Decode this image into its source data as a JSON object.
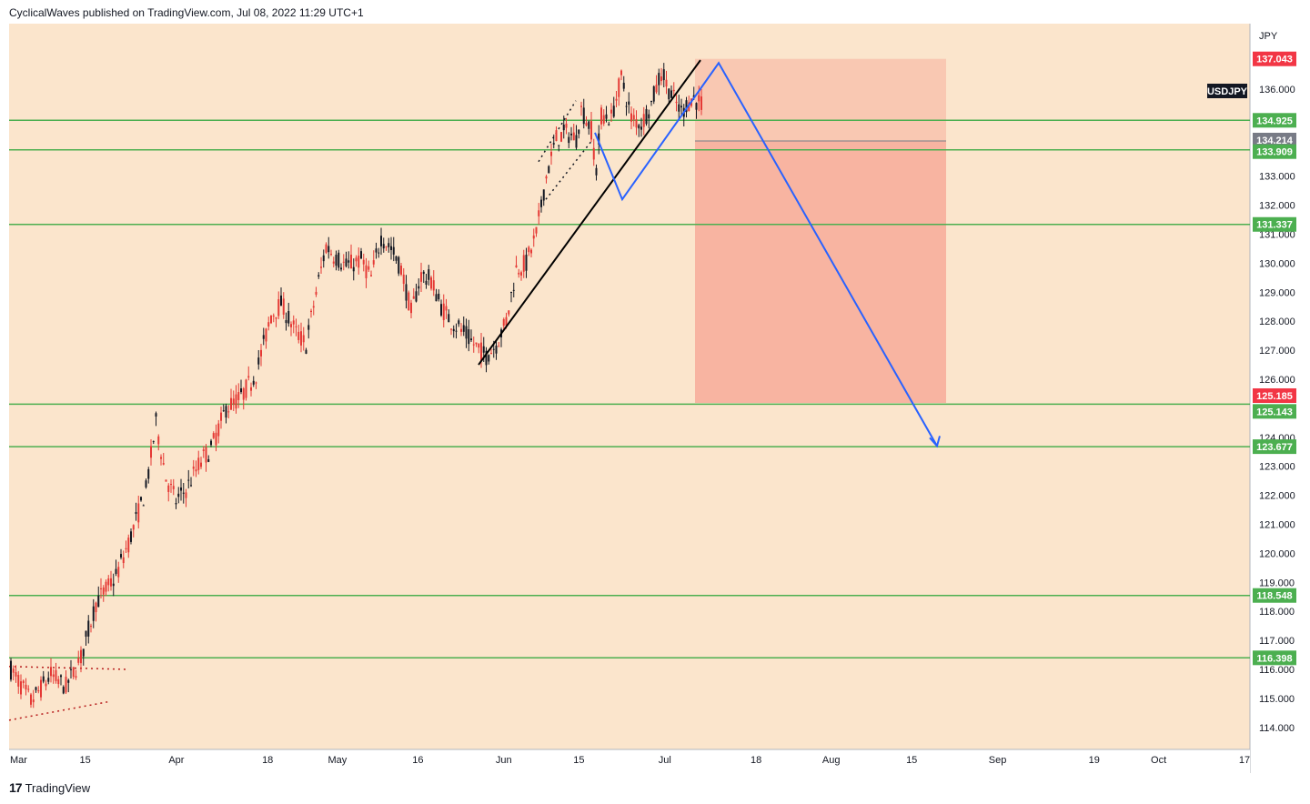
{
  "header": {
    "text": "CyclicalWaves published on TradingView.com, Jul 08, 2022 11:29 UTC+1"
  },
  "footer": {
    "logo": "17",
    "brand": "TradingView"
  },
  "colors": {
    "background": "#fbe5cc",
    "hline": "#4caf50",
    "candle_up": "#131722",
    "candle_down": "#e53935",
    "trend": "#000000",
    "wave": "#2962ff",
    "target_box": "#f7a393",
    "label_red": "#f23645",
    "label_green": "#4caf50",
    "label_grey": "#787b86"
  },
  "chart_data": {
    "type": "candlestick",
    "symbol": "USDJPY",
    "currency": "JPY",
    "ylim": [
      113.4,
      138.2
    ],
    "y_ticks": [
      "114.000",
      "115.000",
      "116.000",
      "117.000",
      "118.000",
      "119.000",
      "120.000",
      "121.000",
      "122.000",
      "123.000",
      "124.000",
      "125.000",
      "126.000",
      "127.000",
      "128.000",
      "129.000",
      "130.000",
      "131.000",
      "132.000",
      "133.000",
      "134.000",
      "135.000",
      "136.000"
    ],
    "x_ticks": [
      "Mar",
      "15",
      "Apr",
      "18",
      "May",
      "16",
      "Jun",
      "15",
      "Jul",
      "18",
      "Aug",
      "15",
      "Sep",
      "19",
      "Oct",
      "17"
    ],
    "horizontal_levels": [
      134.925,
      133.909,
      131.337,
      125.143,
      123.677,
      118.548,
      116.398
    ],
    "price_labels": [
      {
        "text": "137.043",
        "value": 137.043,
        "color": "red"
      },
      {
        "text": "134.925",
        "value": 134.925,
        "color": "green"
      },
      {
        "text": "134.214",
        "value": 134.214,
        "color": "grey"
      },
      {
        "text": "133.909",
        "value": 133.909,
        "color": "green"
      },
      {
        "text": "131.337",
        "value": 131.337,
        "color": "green"
      },
      {
        "text": "125.185",
        "value": 125.185,
        "color": "red"
      },
      {
        "text": "125.143",
        "value": 125.143,
        "color": "green"
      },
      {
        "text": "123.677",
        "value": 123.677,
        "color": "green"
      },
      {
        "text": "118.548",
        "value": 118.548,
        "color": "green"
      },
      {
        "text": "116.398",
        "value": 116.398,
        "color": "green"
      }
    ],
    "short_position": {
      "entry": 134.214,
      "stop": 137.043,
      "target": 125.185,
      "start_date": "Jul 07",
      "end_date": "Aug 24"
    },
    "trendline": [
      {
        "date": "May 24",
        "value": 126.5
      },
      {
        "date": "Jul 12",
        "value": 137.0
      }
    ],
    "projected_path": [
      {
        "date": "Jun 17",
        "value": 134.5
      },
      {
        "date": "Jun 22",
        "value": 132.2
      },
      {
        "date": "Jul 11",
        "value": 136.9
      },
      {
        "date": "Aug 25",
        "value": 123.7
      }
    ],
    "price_path": [
      [
        0,
        116.0
      ],
      [
        4,
        114.9
      ],
      [
        8,
        115.8
      ],
      [
        11,
        115.4
      ],
      [
        14,
        116.4
      ],
      [
        17,
        118.3
      ],
      [
        21,
        119.2
      ],
      [
        24,
        120.6
      ],
      [
        27,
        122.2
      ],
      [
        29,
        124.5
      ],
      [
        31,
        122.6
      ],
      [
        33,
        121.8
      ],
      [
        35,
        122.2
      ],
      [
        38,
        123.2
      ],
      [
        40,
        123.6
      ],
      [
        43,
        125.0
      ],
      [
        46,
        125.4
      ],
      [
        49,
        126.2
      ],
      [
        52,
        128.2
      ],
      [
        54,
        128.6
      ],
      [
        57,
        127.6
      ],
      [
        59,
        127.2
      ],
      [
        61,
        129.0
      ],
      [
        63,
        130.6
      ],
      [
        65,
        130.2
      ],
      [
        67,
        129.9
      ],
      [
        70,
        130.1
      ],
      [
        72,
        129.5
      ],
      [
        74,
        130.9
      ],
      [
        76,
        130.5
      ],
      [
        78,
        129.8
      ],
      [
        80,
        128.3
      ],
      [
        82,
        129.6
      ],
      [
        84,
        129.4
      ],
      [
        86,
        128.5
      ],
      [
        88,
        128.0
      ],
      [
        90,
        127.7
      ],
      [
        92,
        127.3
      ],
      [
        95,
        126.8
      ],
      [
        97,
        127.2
      ],
      [
        99,
        128.0
      ],
      [
        101,
        129.8
      ],
      [
        103,
        130.0
      ],
      [
        105,
        131.0
      ],
      [
        107,
        133.0
      ],
      [
        109,
        134.3
      ],
      [
        111,
        134.5
      ],
      [
        113,
        134.3
      ],
      [
        114,
        135.3
      ],
      [
        116,
        134.6
      ],
      [
        117,
        133.2
      ],
      [
        118,
        135.1
      ],
      [
        120,
        135.0
      ],
      [
        122,
        136.4
      ],
      [
        124,
        135.0
      ],
      [
        126,
        134.8
      ],
      [
        128,
        135.5
      ],
      [
        130,
        136.6
      ],
      [
        132,
        135.8
      ],
      [
        134,
        135.2
      ],
      [
        136,
        135.7
      ],
      [
        138,
        135.5
      ]
    ]
  }
}
